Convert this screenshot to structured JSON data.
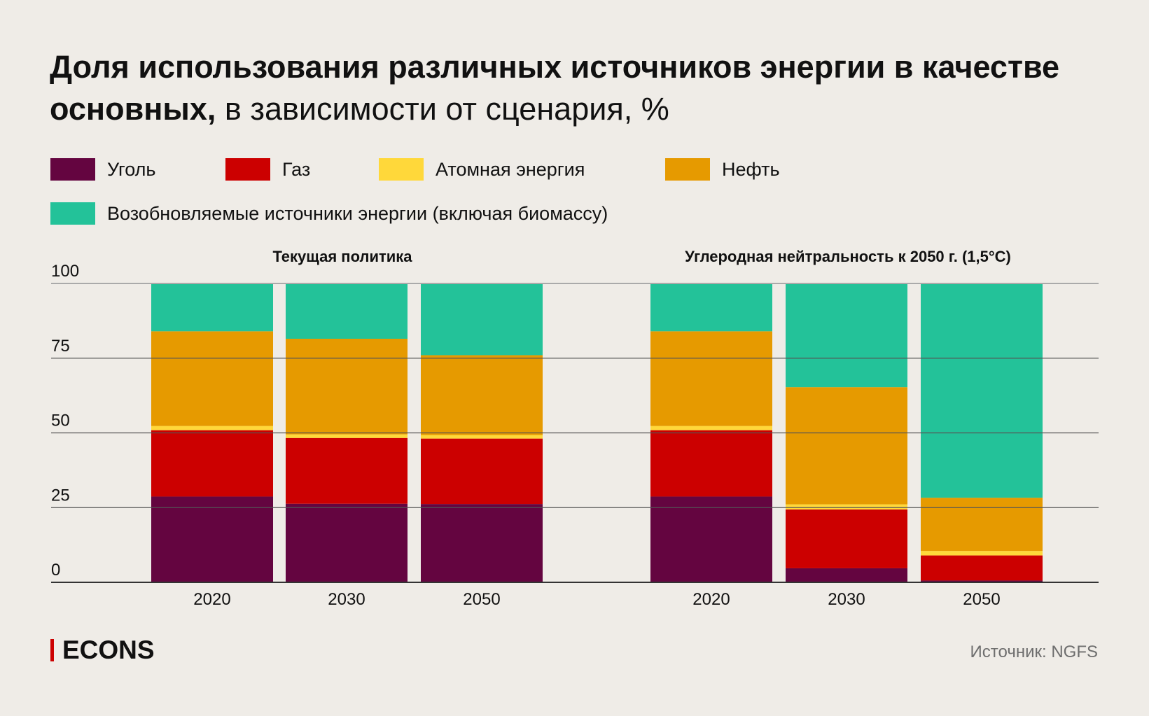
{
  "title_bold": "Доля использования различных источников энергии в качестве основных,",
  "title_rest": " в зависимости от сценария, %",
  "legend": [
    {
      "label": "Уголь",
      "color": "#640540"
    },
    {
      "label": "Газ",
      "color": "#cc0000"
    },
    {
      "label": "Атомная энергия",
      "color": "#ffd83a"
    },
    {
      "label": "Нефть",
      "color": "#e69a00"
    },
    {
      "label": "Возобновляемые источники энергии (включая биомассу)",
      "color": "#23c299"
    }
  ],
  "footer": {
    "logo": "ECONS",
    "source": "Источник: NGFS"
  },
  "chart_data": {
    "type": "bar",
    "stacked": true,
    "ylim": [
      0,
      100
    ],
    "yticks": [
      "0",
      "25",
      "50",
      "75",
      "100"
    ],
    "grid": true,
    "legend_position": "top",
    "panels": [
      {
        "title": "Текущая политика",
        "categories": [
          "2020",
          "2030",
          "2050"
        ],
        "series": [
          {
            "name": "Уголь",
            "values": [
              28.7,
              26.3,
              26.2
            ]
          },
          {
            "name": "Газ",
            "values": [
              22.2,
              22.0,
              21.9
            ]
          },
          {
            "name": "Атомная энергия",
            "values": [
              1.4,
              1.2,
              1.2
            ]
          },
          {
            "name": "Нефть",
            "values": [
              31.7,
              32.0,
              26.7
            ]
          },
          {
            "name": "Возобновляемые источники энергии (включая биомассу)",
            "values": [
              16.0,
              18.5,
              24.0
            ]
          }
        ]
      },
      {
        "title": "Углеродная нейтральность к 2050 г. (1,5°C)",
        "categories": [
          "2020",
          "2030",
          "2050"
        ],
        "series": [
          {
            "name": "Уголь",
            "values": [
              28.7,
              4.7,
              0.6
            ]
          },
          {
            "name": "Газ",
            "values": [
              22.2,
              19.7,
              8.4
            ]
          },
          {
            "name": "Атомная энергия",
            "values": [
              1.4,
              1.7,
              1.5
            ]
          },
          {
            "name": "Нефть",
            "values": [
              31.7,
              39.2,
              17.8
            ]
          },
          {
            "name": "Возобновляемые источники энергии (включая биомассу)",
            "values": [
              16.0,
              34.7,
              71.7
            ]
          }
        ]
      }
    ]
  }
}
